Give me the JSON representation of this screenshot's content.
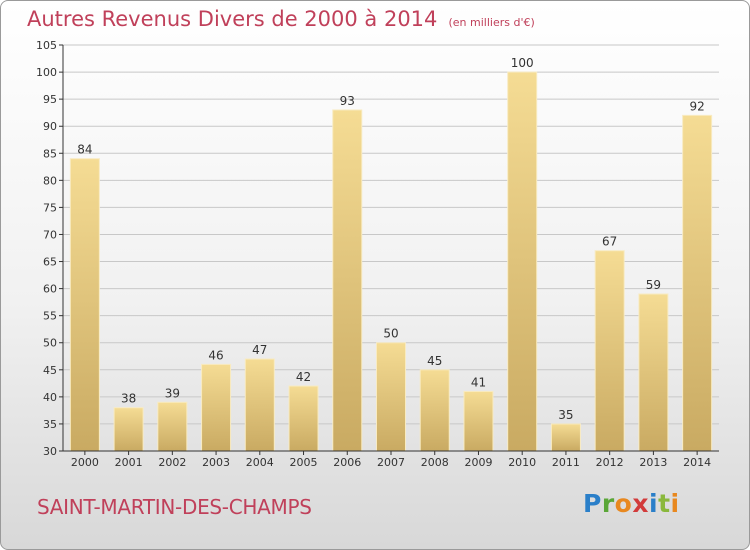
{
  "chart_data": {
    "type": "bar",
    "title": "Autres Revenus Divers de 2000 à 2014",
    "subtitle": "(en milliers d'€)",
    "categories": [
      "2000",
      "2001",
      "2002",
      "2003",
      "2004",
      "2005",
      "2006",
      "2007",
      "2008",
      "2009",
      "2010",
      "2011",
      "2012",
      "2013",
      "2014"
    ],
    "values": [
      84,
      38,
      39,
      46,
      47,
      42,
      93,
      50,
      45,
      41,
      100,
      35,
      67,
      59,
      92
    ],
    "ylim": [
      30,
      105
    ],
    "yticks": [
      30,
      35,
      40,
      45,
      50,
      55,
      60,
      65,
      70,
      75,
      80,
      85,
      90,
      95,
      100,
      105
    ],
    "grid": true,
    "bar_color": "#e8cf86",
    "legend": "none"
  },
  "commune": "SAINT-MARTIN-DES-CHAMPS",
  "logo": {
    "letters": [
      "P",
      "r",
      "o",
      "x",
      "i",
      "t",
      "i"
    ],
    "colors": [
      "#2a7fc9",
      "#5aa637",
      "#e8881f",
      "#d23b3b",
      "#2a7fc9",
      "#8ab83c",
      "#e8881f"
    ]
  },
  "colors": {
    "title": "#c0405a",
    "grid": "#c8c8c8",
    "axis": "#333333"
  }
}
